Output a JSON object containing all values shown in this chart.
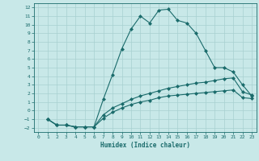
{
  "xlabel": "Humidex (Indice chaleur)",
  "ylabel": "",
  "bg_color": "#c8e8e8",
  "grid_color": "#a8d0d0",
  "line_color": "#1a6b6b",
  "xlim": [
    -0.5,
    23.5
  ],
  "ylim": [
    -2.5,
    12.5
  ],
  "xticks": [
    0,
    1,
    2,
    3,
    4,
    5,
    6,
    7,
    8,
    9,
    10,
    11,
    12,
    13,
    14,
    15,
    16,
    17,
    18,
    19,
    20,
    21,
    22,
    23
  ],
  "yticks": [
    -2,
    -1,
    0,
    1,
    2,
    3,
    4,
    5,
    6,
    7,
    8,
    9,
    10,
    11,
    12
  ],
  "line1_x": [
    1,
    2,
    3,
    4,
    5,
    6,
    7,
    8,
    9,
    10,
    11,
    12,
    13,
    14,
    15,
    16,
    17,
    18,
    19,
    20,
    21,
    22,
    23
  ],
  "line1_y": [
    -1.0,
    -1.7,
    -1.7,
    -1.9,
    -1.9,
    -1.9,
    1.3,
    4.2,
    7.2,
    9.5,
    11.0,
    10.2,
    11.7,
    11.8,
    10.5,
    10.2,
    9.0,
    7.0,
    5.0,
    5.0,
    4.5,
    3.0,
    1.7
  ],
  "line2_x": [
    1,
    2,
    3,
    4,
    5,
    6,
    7,
    8,
    9,
    10,
    11,
    12,
    13,
    14,
    15,
    16,
    17,
    18,
    19,
    20,
    21,
    22,
    23
  ],
  "line2_y": [
    -1.0,
    -1.7,
    -1.7,
    -1.9,
    -1.9,
    -1.9,
    -0.5,
    0.3,
    0.8,
    1.3,
    1.7,
    2.0,
    2.3,
    2.6,
    2.8,
    3.0,
    3.2,
    3.3,
    3.5,
    3.7,
    3.8,
    2.2,
    1.8
  ],
  "line3_x": [
    1,
    2,
    3,
    4,
    5,
    6,
    7,
    8,
    9,
    10,
    11,
    12,
    13,
    14,
    15,
    16,
    17,
    18,
    19,
    20,
    21,
    22,
    23
  ],
  "line3_y": [
    -1.0,
    -1.7,
    -1.7,
    -1.9,
    -1.9,
    -1.9,
    -0.9,
    -0.2,
    0.3,
    0.7,
    1.0,
    1.2,
    1.5,
    1.7,
    1.8,
    1.9,
    2.0,
    2.1,
    2.2,
    2.3,
    2.4,
    1.5,
    1.4
  ]
}
